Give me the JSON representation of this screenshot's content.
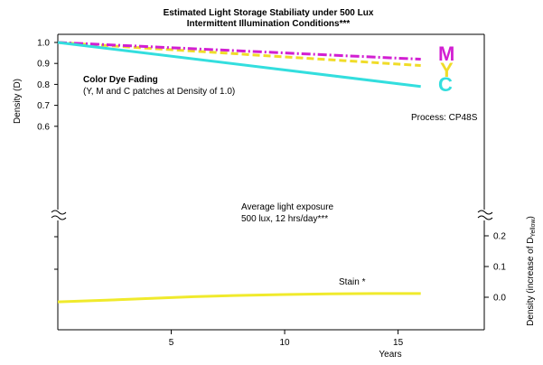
{
  "chart_data": {
    "type": "line",
    "title_line1": "Estimated Light Storage Stabiliaty under 500 Lux",
    "title_line2": "Intermittent Illumination Conditions***",
    "xlabel": "Years",
    "ylabel_left": "Density (D)",
    "ylabel_right_prefix": "Density (increase of D",
    "ylabel_right_sub": "Yellow",
    "ylabel_right_suffix": ")",
    "xlim": [
      0,
      18.8
    ],
    "x_ticks": [
      5,
      10,
      15
    ],
    "x_tick_labels": [
      "5",
      "10",
      "15"
    ],
    "y_left_ticks": [
      1.0,
      0.9,
      0.8,
      0.7,
      0.6
    ],
    "y_left_tick_labels": [
      "1.0",
      "0.9",
      "0.8",
      "0.7",
      "0.6"
    ],
    "y_right_ticks": [
      0.2,
      0.1,
      0.0
    ],
    "y_right_tick_labels": [
      "0.2",
      "0.1",
      "0.0"
    ],
    "series": [
      {
        "name": "M",
        "color": "#d21fd2",
        "dash": "dashdot",
        "x": [
          0,
          16
        ],
        "y": [
          1.0,
          0.92
        ]
      },
      {
        "name": "Y",
        "color": "#f0dc28",
        "dash": "dashed",
        "x": [
          0,
          16
        ],
        "y": [
          1.0,
          0.89
        ]
      },
      {
        "name": "C",
        "color": "#33dede",
        "dash": "solid",
        "x": [
          0,
          16
        ],
        "y": [
          1.0,
          0.79
        ]
      }
    ],
    "stain_series": {
      "color": "#f0ea2c",
      "x": [
        0,
        2,
        4,
        6,
        8,
        10,
        12,
        14,
        16
      ],
      "y": [
        -0.015,
        -0.01,
        -0.004,
        0.002,
        0.006,
        0.009,
        0.011,
        0.012,
        0.012
      ]
    },
    "annotations": {
      "fading_title": "Color Dye Fading",
      "fading_sub": "(Y, M and C patches at Density of 1.0)",
      "process": "Process: CP48S",
      "exposure_line1": "Average light exposure",
      "exposure_line2": "500 lux, 12 hrs/day***",
      "stain": "Stain *",
      "label_M": "M",
      "label_Y": "Y",
      "label_C": "C"
    }
  }
}
